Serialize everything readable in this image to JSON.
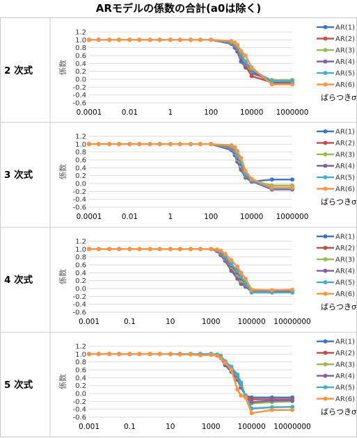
{
  "title": "ARモデルの係数の合計(a0は除く)",
  "chart_data": [
    {
      "type": "line",
      "row_label": "2 次式",
      "ylabel": "係数",
      "xlabel": "ばらつきσ",
      "ylim": [
        -0.6,
        1.2
      ],
      "yticks": [
        "1.2",
        "1.0",
        "0.8",
        "0.6",
        "0.4",
        "0.2",
        "0.0",
        "-0.2",
        "-0.4",
        "-0.6"
      ],
      "xscale": "log",
      "xtick_labels": [
        "0.0001",
        "0.01",
        "1",
        "100",
        "10000",
        "1000000"
      ],
      "x": [
        0.0001,
        0.0003,
        0.001,
        0.003,
        0.01,
        0.03,
        0.1,
        0.3,
        1,
        3,
        10,
        30,
        100,
        1000,
        1500,
        2000,
        3000,
        5000,
        10000,
        100000,
        1000000
      ],
      "series": [
        {
          "name": "AR(1)",
          "color": "#4472C4",
          "values": [
            1,
            1,
            1,
            1,
            1,
            1,
            1,
            1,
            1,
            1,
            1,
            1,
            1,
            0.9,
            0.8,
            0.7,
            0.45,
            0.3,
            0.15,
            -0.02,
            -0.02
          ]
        },
        {
          "name": "AR(2)",
          "color": "#C0504D",
          "values": [
            1,
            1,
            1,
            1,
            1,
            1,
            1,
            1,
            1,
            1,
            1,
            1,
            1,
            0.92,
            0.85,
            0.75,
            0.55,
            0.35,
            0.08,
            -0.08,
            -0.08
          ]
        },
        {
          "name": "AR(3)",
          "color": "#9BBB59",
          "values": [
            1,
            1,
            1,
            1,
            1,
            1,
            1,
            1,
            1,
            1,
            1,
            1,
            1,
            0.93,
            0.87,
            0.78,
            0.6,
            0.4,
            0.2,
            -0.02,
            -0.02
          ]
        },
        {
          "name": "AR(4)",
          "color": "#8064A2",
          "values": [
            1,
            1,
            1,
            1,
            1,
            1,
            1,
            1,
            1,
            1,
            1,
            1,
            1,
            0.94,
            0.88,
            0.8,
            0.62,
            0.42,
            0.22,
            -0.1,
            -0.1
          ]
        },
        {
          "name": "AR(5)",
          "color": "#4BACC6",
          "values": [
            1,
            1,
            1,
            1,
            1,
            1,
            1,
            1,
            1,
            1,
            1,
            1,
            1,
            0.95,
            0.9,
            0.82,
            0.65,
            0.45,
            0.25,
            -0.05,
            -0.05
          ]
        },
        {
          "name": "AR(6)",
          "color": "#F79646",
          "values": [
            1,
            1,
            1,
            1,
            1,
            1,
            1,
            1,
            1,
            1,
            1,
            1,
            1,
            0.97,
            0.93,
            0.87,
            0.72,
            0.6,
            0.3,
            -0.13,
            -0.13
          ]
        }
      ]
    },
    {
      "type": "line",
      "row_label": "3 次式",
      "ylabel": "係数",
      "xlabel": "ばらつきσ",
      "ylim": [
        -0.6,
        1.2
      ],
      "yticks": [
        "1.2",
        "1.0",
        "0.8",
        "0.6",
        "0.4",
        "0.2",
        "0.0",
        "-0.2",
        "-0.4",
        "-0.6"
      ],
      "xscale": "log",
      "xtick_labels": [
        "0.0001",
        "0.01",
        "1",
        "100",
        "10000",
        "1000000"
      ],
      "x": [
        0.0001,
        0.0003,
        0.001,
        0.003,
        0.01,
        0.03,
        0.1,
        0.3,
        1,
        3,
        10,
        30,
        100,
        1000,
        1500,
        2000,
        3000,
        5000,
        10000,
        100000,
        1000000
      ],
      "series": [
        {
          "name": "AR(1)",
          "color": "#4472C4",
          "values": [
            1,
            1,
            1,
            1,
            1,
            1,
            1,
            1,
            1,
            1,
            1,
            1,
            1,
            0.85,
            0.72,
            0.55,
            0.35,
            0.15,
            0.05,
            0.1,
            0.1
          ]
        },
        {
          "name": "AR(2)",
          "color": "#C0504D",
          "values": [
            1,
            1,
            1,
            1,
            1,
            1,
            1,
            1,
            1,
            1,
            1,
            1,
            1,
            0.88,
            0.75,
            0.6,
            0.4,
            0.18,
            0.05,
            -0.1,
            -0.1
          ]
        },
        {
          "name": "AR(3)",
          "color": "#9BBB59",
          "values": [
            1,
            1,
            1,
            1,
            1,
            1,
            1,
            1,
            1,
            1,
            1,
            1,
            1,
            0.9,
            0.78,
            0.62,
            0.45,
            0.2,
            0.08,
            -0.05,
            -0.05
          ]
        },
        {
          "name": "AR(4)",
          "color": "#8064A2",
          "values": [
            1,
            1,
            1,
            1,
            1,
            1,
            1,
            1,
            1,
            1,
            1,
            1,
            1,
            0.92,
            0.8,
            0.65,
            0.5,
            0.22,
            0.06,
            -0.15,
            -0.15
          ]
        },
        {
          "name": "AR(5)",
          "color": "#4BACC6",
          "values": [
            1,
            1,
            1,
            1,
            1,
            1,
            1,
            1,
            1,
            1,
            1,
            1,
            1,
            0.94,
            0.84,
            0.7,
            0.55,
            0.25,
            0.08,
            -0.12,
            -0.12
          ]
        },
        {
          "name": "AR(6)",
          "color": "#F79646",
          "values": [
            1,
            1,
            1,
            1,
            1,
            1,
            1,
            1,
            1,
            1,
            1,
            1,
            1,
            0.97,
            0.92,
            0.82,
            0.65,
            0.32,
            0.12,
            -0.1,
            -0.1
          ]
        }
      ]
    },
    {
      "type": "line",
      "row_label": "4 次式",
      "ylabel": "係数",
      "xlabel": "ばらつきσ",
      "ylim": [
        -0.6,
        1.2
      ],
      "yticks": [
        "1.2",
        "1.0",
        "0.8",
        "0.6",
        "0.4",
        "0.2",
        "0.0",
        "-0.2",
        "-0.4",
        "-0.6"
      ],
      "xscale": "log",
      "xtick_labels": [
        "0.001",
        "0.1",
        "10",
        "1000",
        "100000",
        "10000000"
      ],
      "x": [
        0.001,
        0.003,
        0.01,
        0.03,
        0.1,
        0.3,
        1,
        3,
        10,
        30,
        100,
        300,
        1000,
        2000,
        3000,
        5000,
        10000,
        20000,
        30000,
        50000,
        100000,
        1000000,
        10000000
      ],
      "series": [
        {
          "name": "AR(1)",
          "color": "#4472C4",
          "values": [
            1,
            1,
            1,
            1,
            1,
            1,
            1,
            1,
            1,
            1,
            1,
            1,
            1,
            0.95,
            0.85,
            0.7,
            0.45,
            0.25,
            0.12,
            0.05,
            -0.08,
            -0.08,
            -0.07
          ]
        },
        {
          "name": "AR(2)",
          "color": "#C0504D",
          "values": [
            1,
            1,
            1,
            1,
            1,
            1,
            1,
            1,
            1,
            1,
            1,
            1,
            1,
            0.96,
            0.88,
            0.73,
            0.5,
            0.3,
            0.15,
            0.08,
            -0.03,
            -0.05,
            -0.05
          ]
        },
        {
          "name": "AR(3)",
          "color": "#9BBB59",
          "values": [
            1,
            1,
            1,
            1,
            1,
            1,
            1,
            1,
            1,
            1,
            1,
            1,
            1,
            0.97,
            0.9,
            0.76,
            0.55,
            0.35,
            0.2,
            0.1,
            -0.05,
            -0.07,
            -0.06
          ]
        },
        {
          "name": "AR(4)",
          "color": "#8064A2",
          "values": [
            1,
            1,
            1,
            1,
            1,
            1,
            1,
            1,
            1,
            1,
            1,
            1,
            1,
            0.97,
            0.92,
            0.78,
            0.58,
            0.4,
            0.25,
            0.12,
            -0.04,
            -0.06,
            -0.06
          ]
        },
        {
          "name": "AR(5)",
          "color": "#4BACC6",
          "values": [
            1,
            1,
            1,
            1,
            1,
            1,
            1,
            1,
            1,
            1,
            1,
            1,
            1,
            0.98,
            0.94,
            0.82,
            0.62,
            0.45,
            0.3,
            0.15,
            -0.1,
            -0.1,
            -0.1
          ]
        },
        {
          "name": "AR(6)",
          "color": "#F79646",
          "values": [
            1,
            1,
            1,
            1,
            1,
            1,
            1,
            1,
            1,
            1,
            1,
            1,
            1,
            0.99,
            0.96,
            0.88,
            0.72,
            0.55,
            0.4,
            0.25,
            -0.03,
            -0.04,
            -0.03
          ]
        }
      ]
    },
    {
      "type": "line",
      "row_label": "5 次式",
      "ylabel": "係数",
      "xlabel": "ばらつきσ",
      "ylim": [
        -0.6,
        1.2
      ],
      "yticks": [
        "1.2",
        "1.0",
        "0.8",
        "0.6",
        "0.4",
        "0.2",
        "0.0",
        "-0.2",
        "-0.4",
        "-0.6"
      ],
      "xscale": "log",
      "xtick_labels": [
        "0.001",
        "0.1",
        "10",
        "1000",
        "100000",
        "10000000"
      ],
      "x": [
        0.001,
        0.003,
        0.01,
        0.03,
        0.1,
        0.3,
        1,
        3,
        10,
        30,
        100,
        300,
        1000,
        2000,
        3000,
        5000,
        10000,
        20000,
        30000,
        50000,
        100000,
        1000000,
        10000000
      ],
      "series": [
        {
          "name": "AR(1)",
          "color": "#4472C4",
          "values": [
            1,
            1,
            1,
            1,
            1,
            1,
            1,
            1,
            1,
            1,
            1,
            1,
            1,
            0.97,
            0.9,
            0.72,
            0.55,
            0.35,
            0.15,
            -0.05,
            -0.1,
            -0.1,
            -0.1
          ]
        },
        {
          "name": "AR(2)",
          "color": "#C0504D",
          "values": [
            1,
            1,
            1,
            1,
            1,
            1,
            1,
            1,
            1,
            1,
            1,
            1,
            1,
            0.97,
            0.92,
            0.75,
            0.6,
            0.4,
            0.2,
            -0.05,
            -0.15,
            -0.15,
            -0.15
          ]
        },
        {
          "name": "AR(3)",
          "color": "#9BBB59",
          "values": [
            1,
            1,
            1,
            1,
            1,
            1,
            1,
            1,
            1,
            1,
            1,
            1,
            1,
            0.98,
            0.94,
            0.78,
            0.62,
            0.42,
            0.22,
            -0.05,
            -0.25,
            -0.22,
            -0.2
          ]
        },
        {
          "name": "AR(4)",
          "color": "#8064A2",
          "values": [
            1,
            1,
            1,
            1,
            1,
            1,
            1,
            1,
            1,
            1,
            1,
            1,
            1,
            0.98,
            0.95,
            0.8,
            0.65,
            0.45,
            0.25,
            -0.08,
            -0.22,
            -0.18,
            -0.18
          ]
        },
        {
          "name": "AR(5)",
          "color": "#4BACC6",
          "values": [
            1,
            1,
            1,
            1,
            1,
            1,
            1,
            1,
            1,
            1,
            1,
            1,
            1,
            0.99,
            0.96,
            0.82,
            0.68,
            0.48,
            0.28,
            -0.08,
            -0.38,
            -0.35,
            -0.34
          ]
        },
        {
          "name": "AR(6)",
          "color": "#F79646",
          "values": [
            1,
            1,
            1,
            1,
            1,
            1,
            1,
            1,
            1,
            0.99,
            0.99,
            0.97,
            0.98,
            0.96,
            0.9,
            0.78,
            0.6,
            0.1,
            -0.05,
            -0.1,
            -0.5,
            -0.42,
            -0.42
          ]
        }
      ]
    }
  ]
}
